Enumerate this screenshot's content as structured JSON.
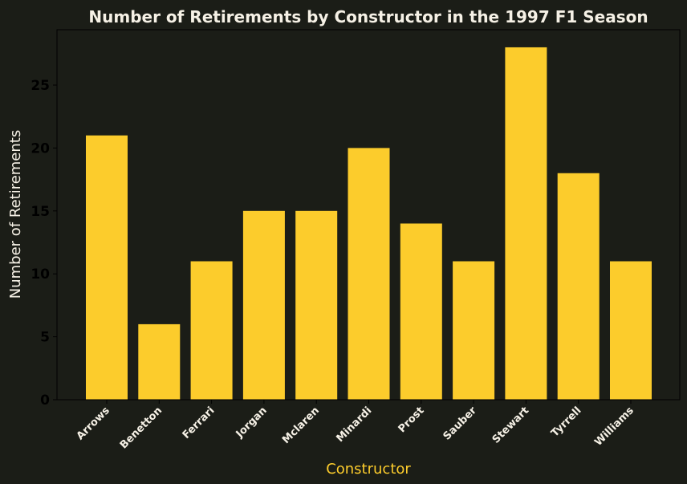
{
  "chart_data": {
    "type": "bar",
    "title": "Number of Retirements by Constructor in the 1997 F1 Season",
    "xlabel": "Constructor",
    "ylabel": "Number of Retirements",
    "categories": [
      "Arrows",
      "Benetton",
      "Ferrari",
      "Jorgan",
      "Mclaren",
      "Minardi",
      "Prost",
      "Sauber",
      "Stewart",
      "Tyrrell",
      "Williams"
    ],
    "values": [
      21,
      6,
      11,
      15,
      15,
      20,
      14,
      11,
      28,
      18,
      11
    ],
    "ylim": [
      0,
      29.4
    ],
    "yticks": [
      0,
      5,
      10,
      15,
      20,
      25
    ],
    "ytick_labels": [
      "0",
      "5",
      "10",
      "15",
      "20",
      "25"
    ],
    "grid": false,
    "colors": {
      "background": "#1b1d17",
      "bar": "#fccc2c",
      "axis": "#000000",
      "xlabel": "#fccc2c",
      "text": "#f6f1e6"
    }
  }
}
